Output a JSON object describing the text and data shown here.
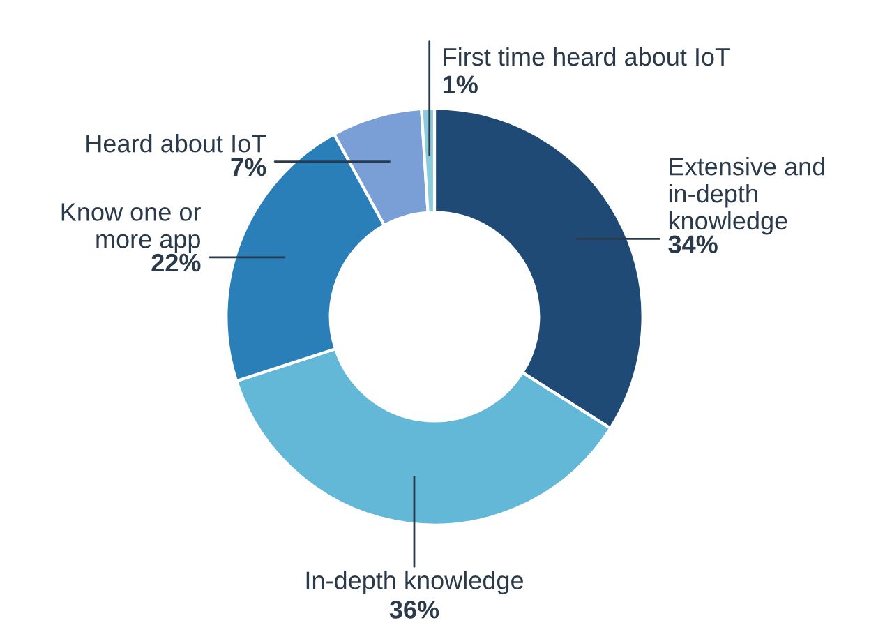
{
  "chart_data": {
    "type": "donut",
    "categories": [
      "Extensive and in-depth knowledge",
      "In-depth knowledge",
      "Know one or more app",
      "Heard about IoT",
      "First time heard about IoT"
    ],
    "values": [
      34,
      36,
      22,
      7,
      1
    ],
    "colors": [
      "#1f4a75",
      "#63b8d8",
      "#2b7fb8",
      "#7a9fd6",
      "#8ccbdc"
    ],
    "value_labels": [
      "34%",
      "36%",
      "22%",
      "7%",
      "1%"
    ],
    "legend": false
  }
}
